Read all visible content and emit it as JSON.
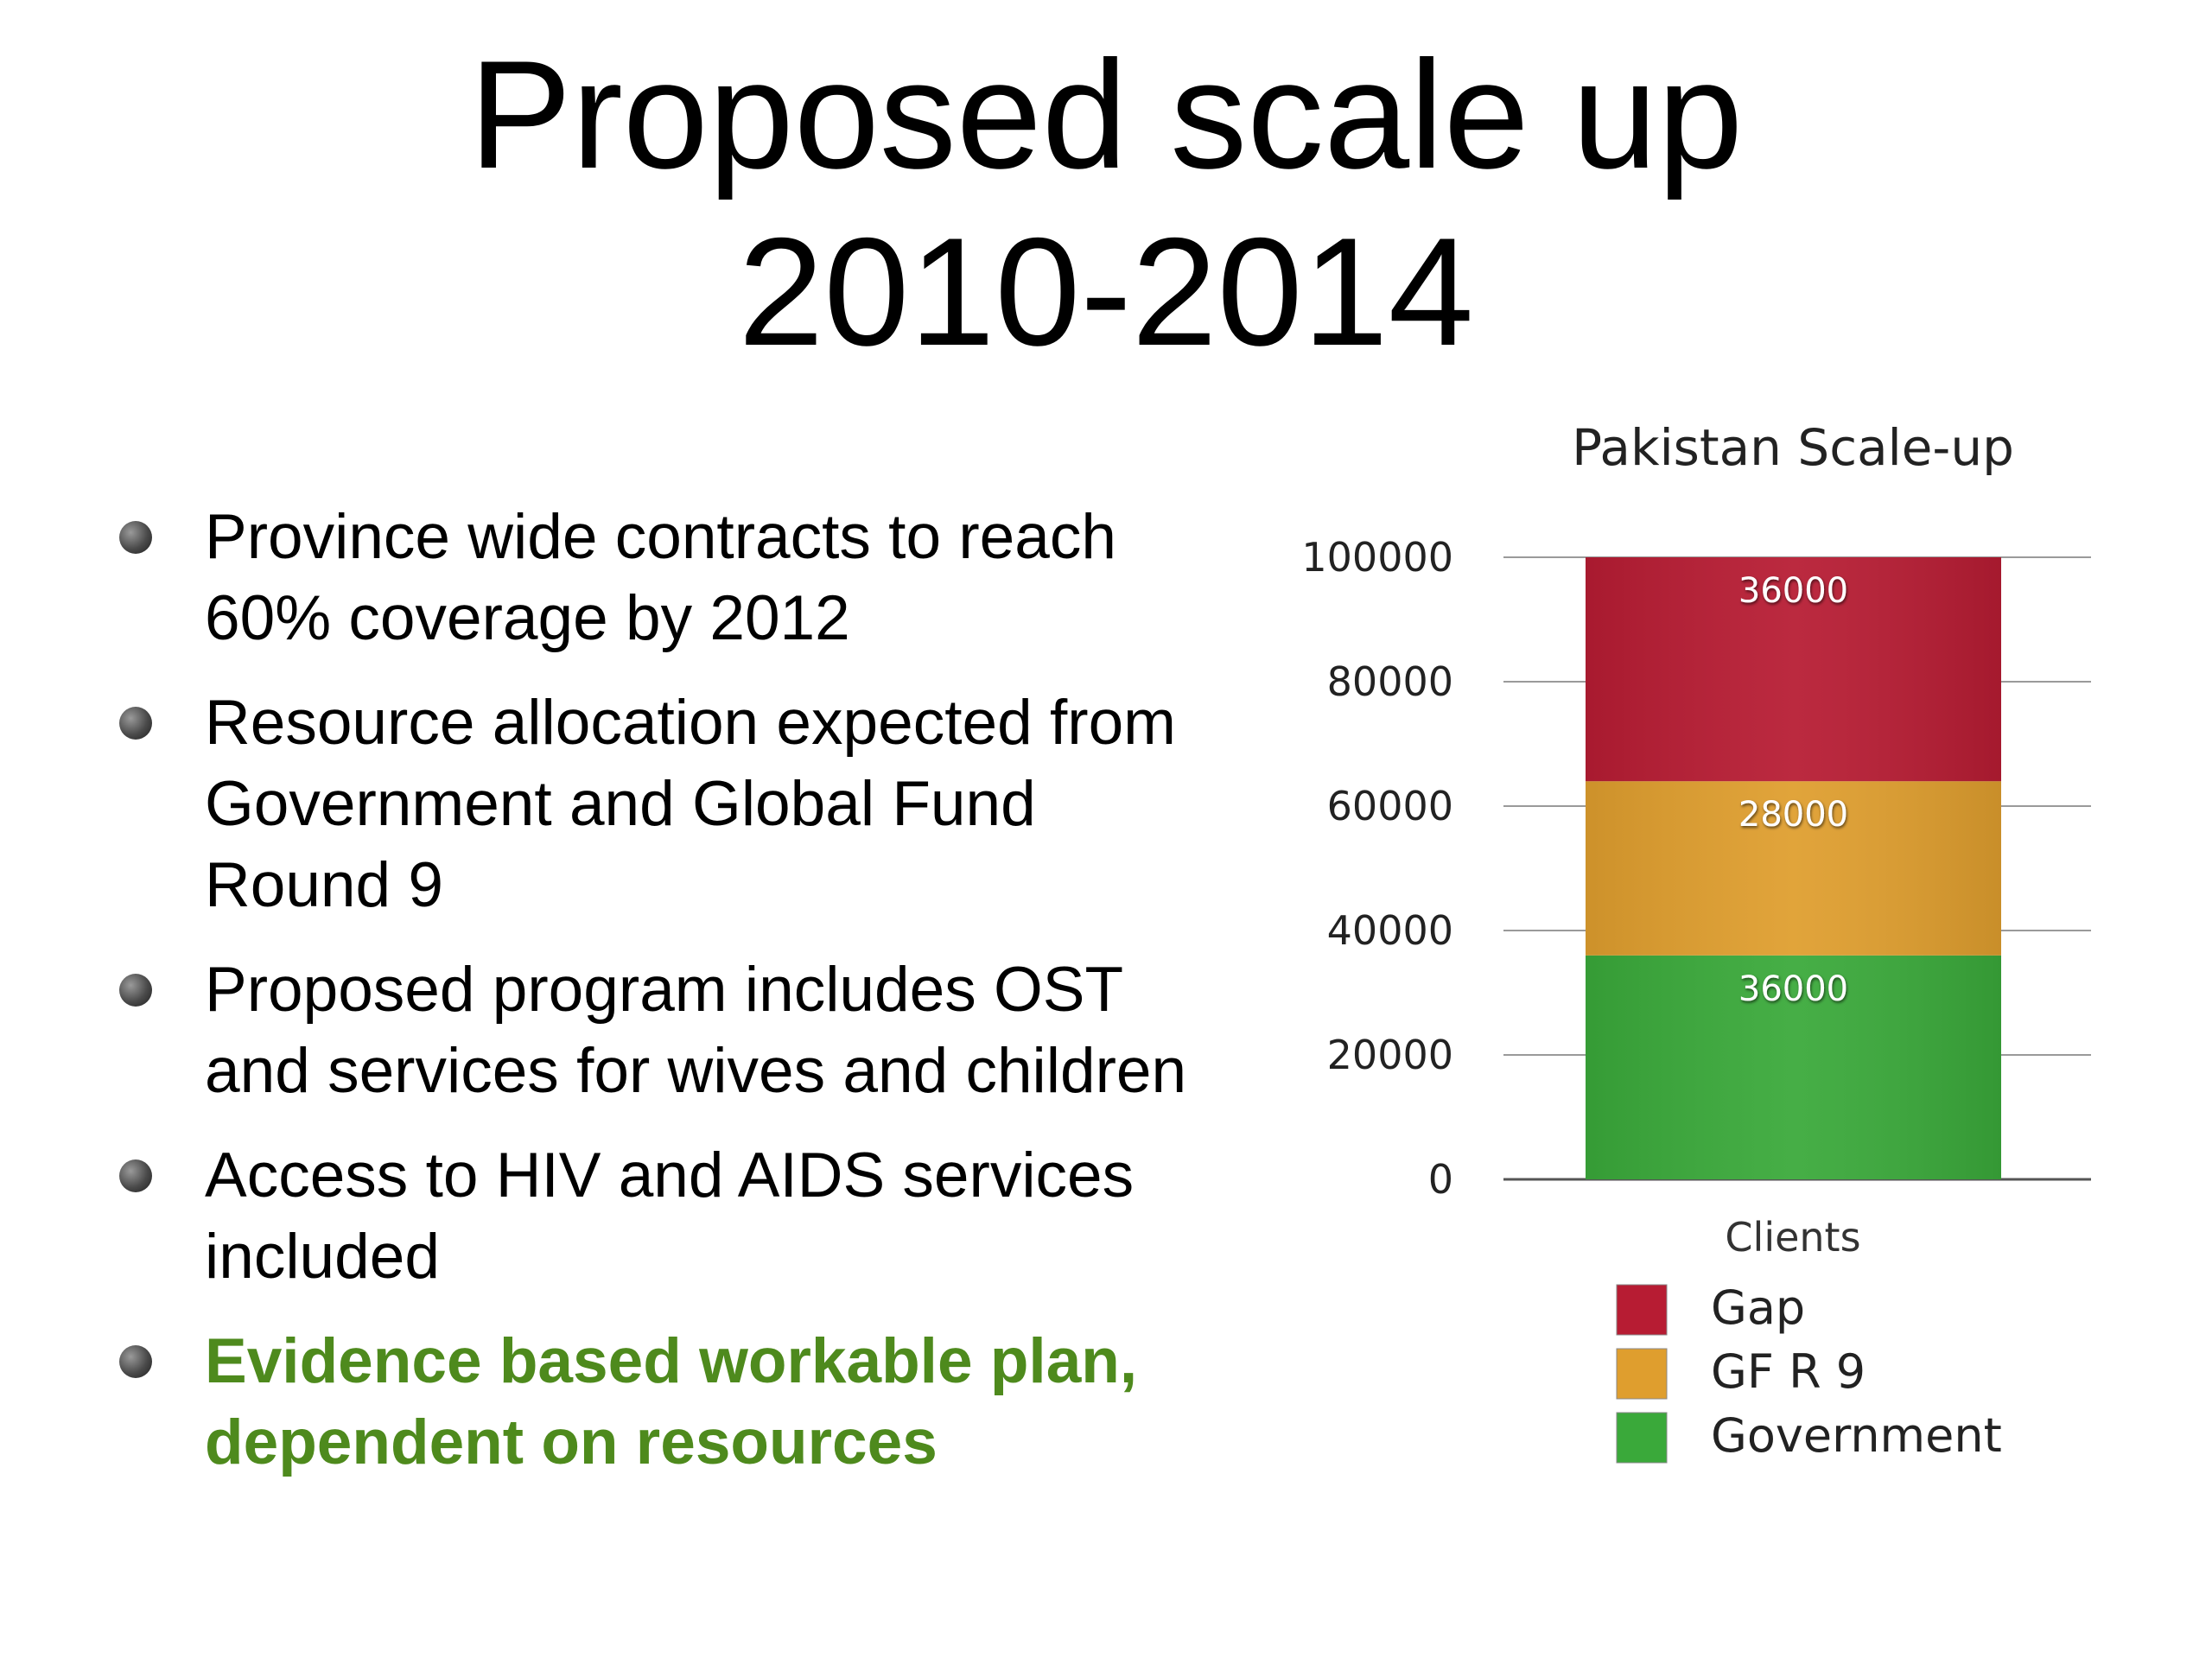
{
  "slide": {
    "title_line1": "Proposed scale up",
    "title_line2": "2010-2014",
    "bullets": [
      {
        "text": "Province wide contracts to reach 60% coverage by 2012",
        "highlight": false
      },
      {
        "text": "Resource allocation expected from Government and Global Fund Round 9",
        "highlight": false
      },
      {
        "text": "Proposed program includes OST and services for wives and children",
        "highlight": false
      },
      {
        "text": "Access to HIV and AIDS services included",
        "highlight": false
      },
      {
        "text": "Evidence based workable plan, dependent on resources",
        "highlight": true
      }
    ],
    "highlight_color": "#4e8a1d"
  },
  "chart_data": {
    "type": "bar",
    "stacked": true,
    "title": "Pakistan Scale-up",
    "categories": [
      "Clients"
    ],
    "series": [
      {
        "name": "Government",
        "values": [
          36000
        ],
        "color": "#3aa93a"
      },
      {
        "name": "GF R 9",
        "values": [
          28000
        ],
        "color": "#df9e2e"
      },
      {
        "name": "Gap",
        "values": [
          36000
        ],
        "color": "#b71c33"
      }
    ],
    "ylim": [
      0,
      100000
    ],
    "yticks": [
      "0",
      "20000",
      "40000",
      "60000",
      "80000",
      "100000"
    ],
    "grid": true,
    "legend": {
      "position": "bottom",
      "order": [
        "Gap",
        "GF R 9",
        "Government"
      ]
    },
    "data_labels": [
      "36000",
      "28000",
      "36000"
    ]
  }
}
